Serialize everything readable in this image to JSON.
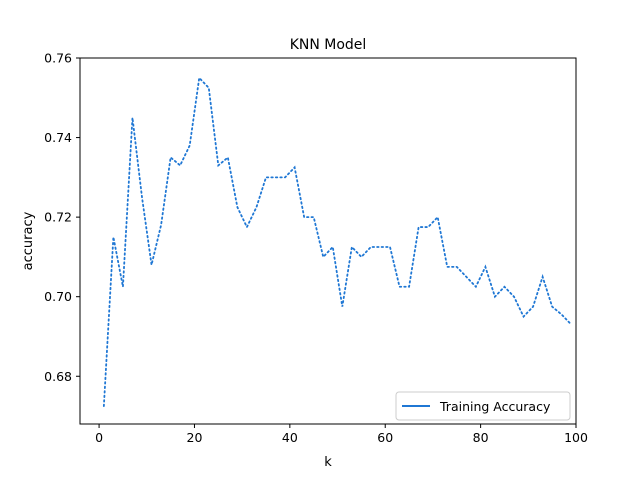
{
  "chart_data": {
    "type": "line",
    "title": "KNN Model",
    "xlabel": "k",
    "ylabel": "accuracy",
    "xlim": [
      -4,
      100
    ],
    "ylim": [
      0.668,
      0.76
    ],
    "xticks": [
      0,
      20,
      40,
      60,
      80,
      100
    ],
    "yticks": [
      0.68,
      0.7,
      0.72,
      0.74,
      0.76
    ],
    "ytick_labels": [
      "0.68",
      "0.70",
      "0.72",
      "0.74",
      "0.76"
    ],
    "grid": false,
    "legend": "lower right",
    "series": [
      {
        "name": "Training Accuracy",
        "color": "#1f77d4",
        "linestyle": "dotted",
        "x": [
          1,
          3,
          5,
          7,
          9,
          11,
          13,
          15,
          17,
          19,
          21,
          23,
          25,
          27,
          29,
          31,
          33,
          35,
          37,
          39,
          41,
          43,
          45,
          47,
          49,
          51,
          53,
          55,
          57,
          59,
          61,
          63,
          65,
          67,
          69,
          71,
          73,
          75,
          77,
          79,
          81,
          83,
          85,
          87,
          89,
          91,
          93,
          95,
          97,
          99
        ],
        "values": [
          0.6725,
          0.715,
          0.7025,
          0.745,
          0.725,
          0.708,
          0.718,
          0.735,
          0.733,
          0.738,
          0.755,
          0.7525,
          0.733,
          0.735,
          0.7225,
          0.7175,
          0.7225,
          0.73,
          0.73,
          0.73,
          0.7325,
          0.72,
          0.72,
          0.71,
          0.7125,
          0.6975,
          0.7125,
          0.71,
          0.7125,
          0.7125,
          0.7125,
          0.7025,
          0.7025,
          0.7175,
          0.7175,
          0.72,
          0.7075,
          0.7075,
          0.705,
          0.7025,
          0.7075,
          0.7,
          0.7025,
          0.7,
          0.695,
          0.6975,
          0.705,
          0.6975,
          0.6955,
          0.693
        ]
      }
    ]
  }
}
